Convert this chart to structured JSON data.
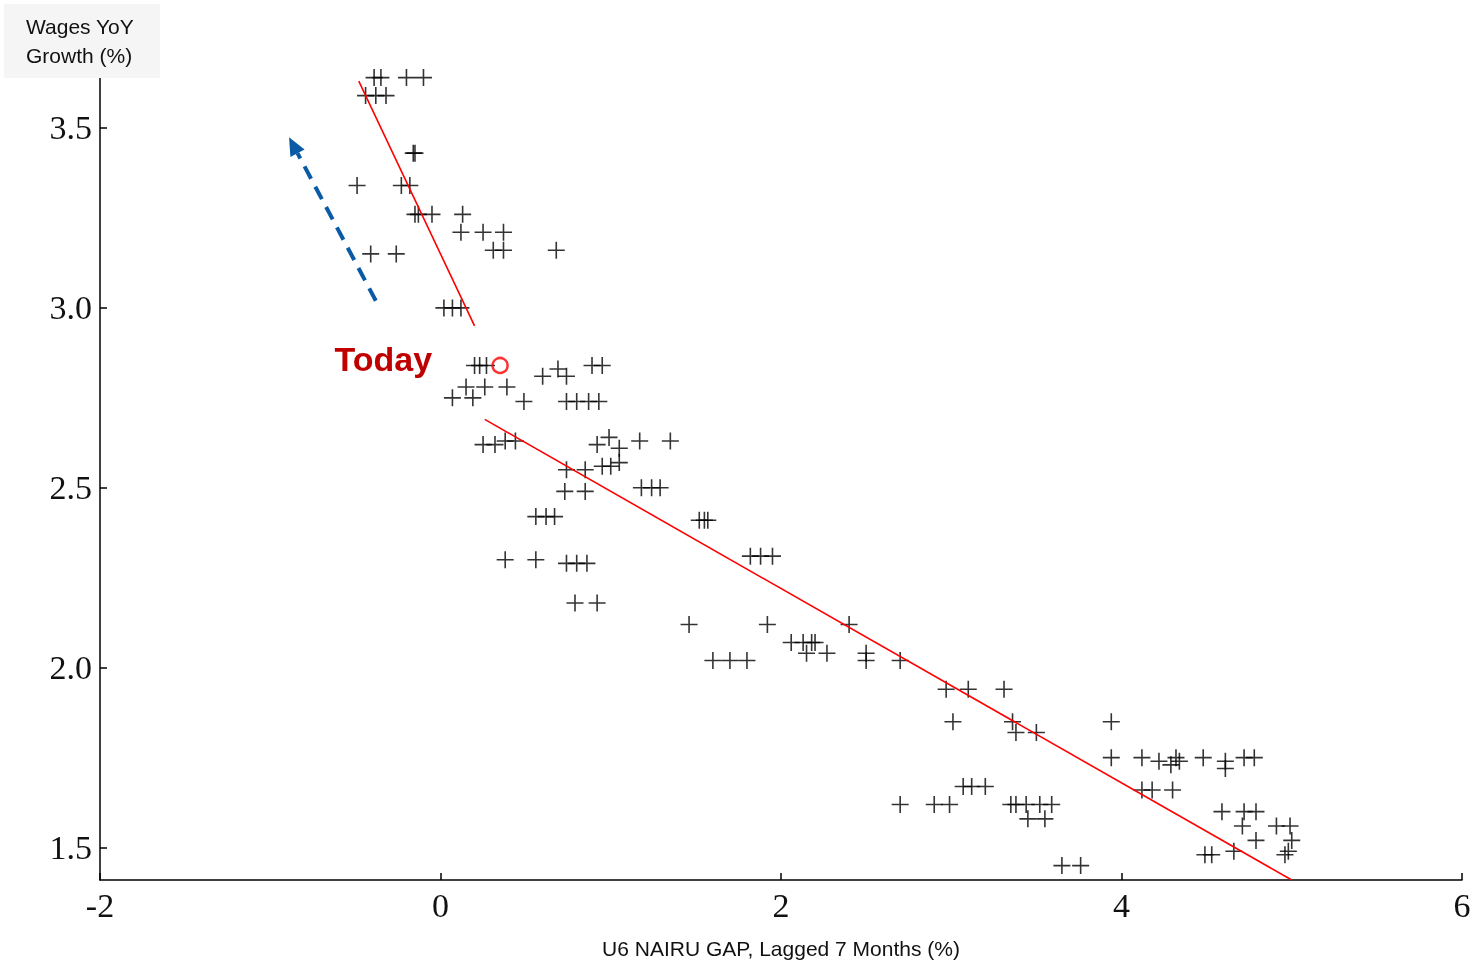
{
  "chart_data": {
    "type": "scatter",
    "ylabel": "Wages YoY Growth (%)",
    "xlabel": "U6 NAIRU GAP, Lagged 7 Months (%)",
    "xlim": [
      -2,
      6
    ],
    "xticks": [
      -2,
      0,
      2,
      4,
      6
    ],
    "ylim": [
      1.41,
      3.65
    ],
    "yticks": [
      {
        "value": 1.5,
        "label": "1.5"
      },
      {
        "value": 2,
        "label": "2.0"
      },
      {
        "value": 2.5,
        "label": "2.5"
      },
      {
        "value": 3,
        "label": "3.0"
      },
      {
        "value": 3.5,
        "label": "3.5"
      }
    ],
    "grid": false,
    "annotations": [
      {
        "text": "Today",
        "x": 0.35,
        "y": 2.84
      }
    ],
    "series": [
      {
        "color": "#000000",
        "marker": "cross",
        "x": [
          -0.39,
          -0.35,
          -0.2,
          -0.1,
          -0.44,
          -0.38,
          -0.32,
          -0.16,
          -0.15,
          -0.49,
          -0.23,
          -0.18,
          -0.15,
          -0.13,
          -0.05,
          0.13,
          0.12,
          0.25,
          0.37,
          0.31,
          0.37,
          0.68,
          -0.41,
          -0.26,
          0.02,
          0.07,
          0.12,
          0.2,
          0.23,
          0.27,
          0.6,
          0.69,
          0.74,
          0.89,
          0.95,
          0.15,
          0.26,
          0.39,
          0.07,
          0.19,
          0.49,
          0.74,
          0.8,
          0.87,
          0.93,
          0.25,
          0.32,
          0.38,
          0.44,
          0.92,
          0.99,
          1.05,
          1.17,
          1.35,
          0.74,
          0.85,
          0.95,
          1.0,
          1.05,
          0.73,
          0.85,
          1.18,
          1.24,
          1.29,
          0.56,
          0.62,
          0.67,
          1.52,
          1.55,
          1.57,
          0.38,
          0.56,
          0.74,
          0.8,
          0.86,
          0.79,
          0.92,
          1.82,
          1.88,
          1.95,
          1.46,
          1.92,
          2.4,
          2.06,
          2.13,
          2.18,
          2.2,
          2.15,
          2.27,
          2.5,
          2.5,
          1.6,
          1.7,
          1.8,
          2.7,
          2.97,
          3.1,
          3.31,
          3.01,
          3.36,
          3.38,
          3.5,
          3.94,
          3.94,
          4.12,
          4.22,
          4.29,
          4.32,
          4.34,
          4.48,
          4.61,
          4.61,
          4.72,
          4.78,
          4.12,
          4.18,
          4.3,
          3.07,
          3.12,
          3.2,
          2.7,
          2.9,
          2.99,
          3.35,
          3.38,
          3.44,
          3.52,
          3.59,
          3.45,
          3.55,
          4.59,
          4.72,
          4.79,
          4.71,
          4.91,
          4.99,
          4.79,
          5.0,
          4.49,
          4.53,
          4.66,
          4.96,
          4.98,
          3.65,
          3.76
        ],
        "values": [
          3.64,
          3.64,
          3.64,
          3.64,
          3.59,
          3.59,
          3.59,
          3.43,
          3.43,
          3.34,
          3.34,
          3.34,
          3.26,
          3.26,
          3.26,
          3.26,
          3.21,
          3.21,
          3.21,
          3.16,
          3.16,
          3.16,
          3.15,
          3.15,
          3.0,
          3.0,
          3.0,
          2.84,
          2.84,
          2.84,
          2.81,
          2.83,
          2.81,
          2.84,
          2.84,
          2.78,
          2.78,
          2.78,
          2.75,
          2.75,
          2.74,
          2.74,
          2.74,
          2.74,
          2.74,
          2.62,
          2.62,
          2.63,
          2.63,
          2.62,
          2.64,
          2.61,
          2.63,
          2.63,
          2.55,
          2.55,
          2.56,
          2.56,
          2.57,
          2.49,
          2.49,
          2.5,
          2.5,
          2.5,
          2.42,
          2.42,
          2.42,
          2.41,
          2.41,
          2.41,
          2.3,
          2.3,
          2.29,
          2.29,
          2.29,
          2.18,
          2.18,
          2.31,
          2.31,
          2.31,
          2.12,
          2.12,
          2.12,
          2.07,
          2.07,
          2.07,
          2.07,
          2.04,
          2.04,
          2.04,
          2.02,
          2.02,
          2.02,
          2.02,
          2.02,
          1.94,
          1.94,
          1.94,
          1.85,
          1.85,
          1.82,
          1.82,
          1.85,
          1.75,
          1.75,
          1.74,
          1.73,
          1.75,
          1.74,
          1.75,
          1.74,
          1.72,
          1.75,
          1.75,
          1.66,
          1.66,
          1.66,
          1.67,
          1.67,
          1.67,
          1.62,
          1.62,
          1.62,
          1.62,
          1.62,
          1.62,
          1.62,
          1.62,
          1.58,
          1.58,
          1.6,
          1.6,
          1.6,
          1.56,
          1.56,
          1.56,
          1.52,
          1.52,
          1.48,
          1.48,
          1.49,
          1.48,
          1.49,
          1.45,
          1.45
        ]
      },
      {
        "type": "line",
        "color": "#ff0000",
        "marker": "none",
        "line_style": "solid",
        "x": [
          -0.48,
          0.2
        ],
        "values": [
          3.63,
          2.95
        ]
      },
      {
        "type": "line",
        "color": "#ff0000",
        "marker": "none",
        "line_style": "solid",
        "x": [
          0.26,
          5.0
        ],
        "values": [
          2.69,
          1.41
        ]
      },
      {
        "type": "scatter",
        "color": "#ff0000",
        "marker": "circle",
        "x": [
          0.35
        ],
        "values": [
          2.84
        ]
      }
    ]
  }
}
